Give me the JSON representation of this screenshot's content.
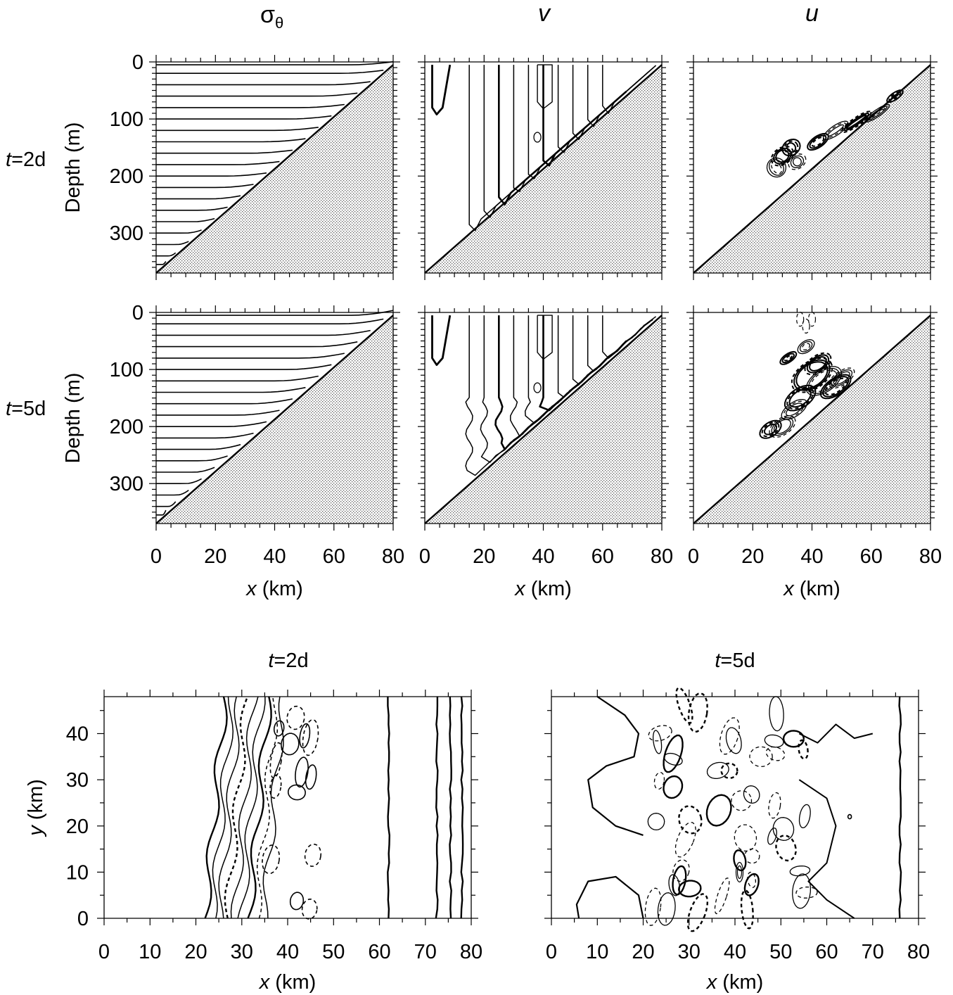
{
  "figure": {
    "column_titles": {
      "sigma_symbol": "σ",
      "sigma_subscript": "θ",
      "v": "v",
      "u": "u"
    },
    "row_labels": [
      {
        "var": "t",
        "rest": "=2d"
      },
      {
        "var": "t",
        "rest": "=5d"
      }
    ],
    "bottom_titles": [
      {
        "var": "t",
        "rest": "=2d"
      },
      {
        "var": "t",
        "rest": "=5d"
      }
    ],
    "colors": {
      "ink": "#000000",
      "topography": "#9a9a9a",
      "background": "#ffffff"
    }
  },
  "chart_data": [
    {
      "id": "cross-sections",
      "type": "contour",
      "panels": [
        "σθ t=2d",
        "v t=2d",
        "u t=2d",
        "σθ t=5d",
        "v t=5d",
        "u t=5d"
      ],
      "xlabel_var": "x",
      "xlabel_unit": " (km)",
      "ylabel": "Depth (m)",
      "xlim": [
        0,
        80
      ],
      "ylim": [
        0,
        370
      ],
      "y_inverted": true,
      "xticks": [
        0,
        20,
        40,
        60,
        80
      ],
      "yticks": [
        0,
        100,
        200,
        300
      ],
      "bottom_slope": {
        "x": [
          0,
          80
        ],
        "depth": [
          370,
          5
        ]
      },
      "sigma_isopycnal_depths_m": [
        5,
        20,
        40,
        60,
        80,
        100,
        120,
        140,
        160,
        180,
        200,
        220,
        240,
        260,
        280,
        300,
        320,
        340,
        355
      ],
      "v_contour_x_km": [
        15,
        20,
        25,
        30,
        35,
        40,
        45,
        50,
        55,
        60
      ]
    },
    {
      "id": "plan-views",
      "type": "contour",
      "panels": [
        "t=2d",
        "t=5d"
      ],
      "xlabel_var": "x",
      "xlabel_unit": " (km)",
      "ylabel_var": "y",
      "ylabel_unit": " (km)",
      "xlim": [
        0,
        80
      ],
      "ylim": [
        0,
        48
      ],
      "xticks": [
        0,
        10,
        20,
        30,
        40,
        50,
        60,
        70,
        80
      ],
      "yticks": [
        0,
        10,
        20,
        30,
        40
      ],
      "t2d_straight_contours_x_km": [
        62,
        72.5,
        75.5,
        78
      ],
      "t5d_straight_contours_x_km": [
        76
      ]
    }
  ]
}
